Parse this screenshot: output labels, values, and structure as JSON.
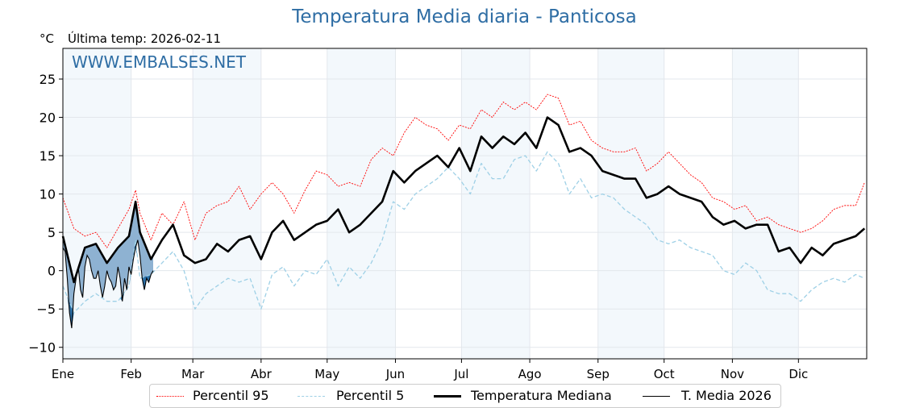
{
  "chart_data": {
    "type": "line",
    "title": "Temperatura Media diaria - Panticosa",
    "ylabel": "°C",
    "subtitle": "Última temp: 2026-02-11",
    "watermark": "WWW.EMBALSES.NET",
    "ylim": [
      -11.5,
      29
    ],
    "xlim_days": [
      0,
      365
    ],
    "yticks": [
      25,
      20,
      15,
      10,
      5,
      0,
      -5,
      -10
    ],
    "ytick_labels": [
      "25",
      "20",
      "15",
      "10",
      "5",
      "0",
      "−5",
      "−10"
    ],
    "months": [
      {
        "label": "Ene",
        "day": 0
      },
      {
        "label": "Feb",
        "day": 31
      },
      {
        "label": "Mar",
        "day": 59
      },
      {
        "label": "Abr",
        "day": 90
      },
      {
        "label": "May",
        "day": 120
      },
      {
        "label": "Jun",
        "day": 151
      },
      {
        "label": "Jul",
        "day": 181
      },
      {
        "label": "Ago",
        "day": 212
      },
      {
        "label": "Sep",
        "day": 243
      },
      {
        "label": "Oct",
        "day": 273
      },
      {
        "label": "Nov",
        "day": 304
      },
      {
        "label": "Dic",
        "day": 334
      }
    ],
    "shaded_months": [
      "Ene",
      "Mar",
      "May",
      "Jul",
      "Sep",
      "Nov"
    ],
    "grid": true,
    "legend_position": "bottom",
    "x_days": [
      0,
      5,
      10,
      15,
      20,
      25,
      30,
      33,
      35,
      40,
      45,
      50,
      55,
      60,
      65,
      70,
      75,
      80,
      85,
      90,
      95,
      100,
      105,
      110,
      115,
      120,
      125,
      130,
      135,
      140,
      145,
      150,
      155,
      160,
      165,
      170,
      175,
      180,
      185,
      190,
      195,
      200,
      205,
      210,
      215,
      220,
      225,
      230,
      235,
      240,
      245,
      250,
      255,
      260,
      265,
      270,
      275,
      280,
      285,
      290,
      295,
      300,
      305,
      310,
      315,
      320,
      325,
      330,
      335,
      340,
      345,
      350,
      355,
      360,
      364
    ],
    "series": [
      {
        "name": "Percentil 95",
        "color": "#ff0000",
        "style": "dotted",
        "values": [
          9.5,
          5.5,
          4.5,
          5,
          3,
          5.5,
          8,
          10.5,
          7.5,
          4,
          7.5,
          6,
          9,
          4,
          7.5,
          8.5,
          9,
          11,
          8,
          10,
          11.5,
          10,
          7.5,
          10.5,
          13,
          12.5,
          11,
          11.5,
          11,
          14.5,
          16,
          15,
          18,
          20,
          19,
          18.5,
          17,
          19,
          18.5,
          21,
          20,
          22,
          21,
          22,
          21,
          23,
          22.5,
          19,
          19.5,
          17,
          16,
          15.5,
          15.5,
          16,
          13,
          14,
          15.5,
          14,
          12.5,
          11.5,
          9.5,
          9,
          8,
          8.5,
          6.5,
          7,
          6,
          5.5,
          5,
          5.5,
          6.5,
          8,
          8.5,
          8.5,
          11.5
        ]
      },
      {
        "name": "Percentil 5",
        "color": "#9ed0e6",
        "style": "dashed",
        "values": [
          -2,
          -5.5,
          -4,
          -3,
          -4,
          -4,
          -2,
          4,
          -1,
          -0.5,
          1,
          2.5,
          0,
          -5,
          -3,
          -2,
          -1,
          -1.5,
          -1,
          -5,
          -0.5,
          0.5,
          -2,
          0,
          -0.5,
          1.5,
          -2,
          0.5,
          -1,
          1,
          4,
          9,
          8,
          10,
          11,
          12,
          13.5,
          12,
          10,
          14,
          12,
          12,
          14.5,
          15,
          13,
          15.5,
          14,
          10,
          12,
          9.5,
          10,
          9.5,
          8,
          7,
          6,
          4,
          3.5,
          4,
          3,
          2.5,
          2,
          0,
          -0.5,
          1,
          0,
          -2.5,
          -3,
          -3,
          -4,
          -2.5,
          -1.5,
          -1,
          -1.5,
          -0.5,
          -1
        ]
      },
      {
        "name": "Temperatura Mediana",
        "color": "#000000",
        "style": "solid-thick",
        "values": [
          4.5,
          -1.5,
          3,
          3.5,
          1,
          3,
          4.5,
          9,
          5,
          1.5,
          4,
          6,
          2,
          1,
          1.5,
          3.5,
          2.5,
          4,
          4.5,
          1.5,
          5,
          6.5,
          4,
          5,
          6,
          6.5,
          8,
          5,
          6,
          7.5,
          9,
          13,
          11.5,
          13,
          14,
          15,
          13.5,
          16,
          13,
          17.5,
          16,
          17.5,
          16.5,
          18,
          16,
          20,
          19,
          15.5,
          16,
          15,
          13,
          12.5,
          12,
          12,
          9.5,
          10,
          11,
          10,
          9.5,
          9,
          7,
          6,
          6.5,
          5.5,
          6,
          6,
          2.5,
          3,
          1,
          3,
          2,
          3.5,
          4,
          4.5,
          5.5
        ]
      }
    ],
    "current_year": {
      "name": "T. Media 2026",
      "color": "#000000",
      "fill_above_color": "#88aed0",
      "fill_below_p5_color": "#2c6fa6",
      "x_days": [
        0,
        1,
        2,
        3,
        4,
        5,
        6,
        7,
        8,
        9,
        10,
        11,
        12,
        13,
        14,
        15,
        16,
        17,
        18,
        19,
        20,
        21,
        22,
        23,
        24,
        25,
        26,
        27,
        28,
        29,
        30,
        31,
        32,
        33,
        34,
        35,
        36,
        37,
        38,
        39,
        40,
        41
      ],
      "values": [
        3,
        2.5,
        -1,
        -5.5,
        -7.5,
        -3,
        -1,
        0.5,
        -2.5,
        -3.5,
        0.5,
        2,
        1.5,
        0,
        -1,
        -1,
        0,
        -2,
        -3.5,
        -2,
        0,
        -1,
        -1.5,
        -2.5,
        -2,
        0.5,
        -1,
        -4,
        -1,
        -2.5,
        0.5,
        -0.5,
        1.5,
        3,
        4,
        2,
        -1,
        -2.5,
        -1,
        -1.5,
        -0.5,
        0
      ]
    }
  },
  "legend": {
    "p95": "Percentil 95",
    "p5": "Percentil 5",
    "median": "Temperatura Mediana",
    "current": "T. Media 2026"
  }
}
